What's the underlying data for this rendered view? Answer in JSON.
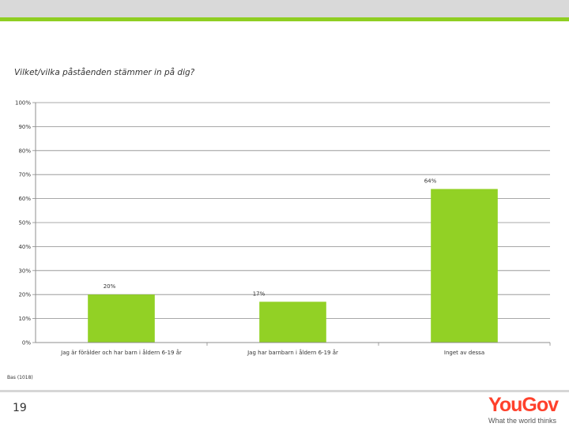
{
  "colors": {
    "accent": "#8fce22",
    "bar": "#92d125",
    "header_band": "#d9d9d9",
    "logo_red": "#ff412c"
  },
  "slide": {
    "question": "Vilket/vilka påståenden stämmer in på dig?",
    "base": "Bas (1018)",
    "page_number": "19"
  },
  "logo": {
    "word": "YouGov",
    "you": "You",
    "gov": "Gov",
    "tagline": "What the world thinks"
  },
  "chart_data": {
    "type": "bar",
    "categories": [
      "Jag är förälder och har barn i åldern 6-19 år",
      "Jag har barnbarn i åldern 6-19 år",
      "Inget av dessa"
    ],
    "values": [
      20,
      17,
      64
    ],
    "data_labels": [
      "20%",
      "17%",
      "64%"
    ],
    "ylim": [
      0,
      100
    ],
    "yticks": [
      "0%",
      "10%",
      "20%",
      "30%",
      "40%",
      "50%",
      "60%",
      "70%",
      "80%",
      "90%",
      "100%"
    ],
    "grid": true,
    "legend": "none"
  }
}
